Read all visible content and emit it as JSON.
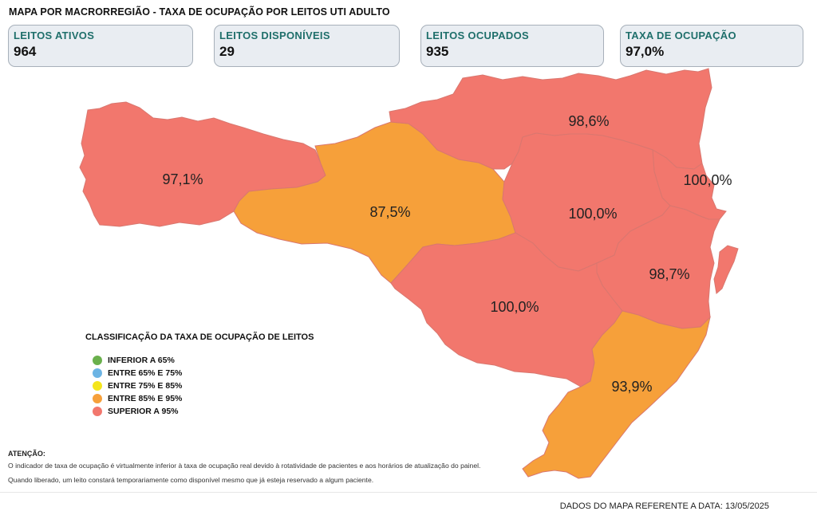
{
  "title": "MAPA POR MACRORREGIÃO - TAXA DE OCUPAÇÃO POR LEITOS UTI ADULTO",
  "kpis": [
    {
      "label": "LEITOS ATIVOS",
      "value": "964"
    },
    {
      "label": "LEITOS DISPONÍVEIS",
      "value": "29"
    },
    {
      "label": "LEITOS OCUPADOS",
      "value": "935"
    },
    {
      "label": "TAXA DE OCUPAÇÃO",
      "value": "97,0%"
    }
  ],
  "colors": {
    "red": "#f2776d",
    "orange": "#f6a03a",
    "green": "#6ab04c",
    "blue": "#6cb4e4",
    "yellow": "#f4e51c"
  },
  "regions": [
    {
      "label": "97,1%",
      "color": "red"
    },
    {
      "label": "87,5%",
      "color": "orange"
    },
    {
      "label": "98,6%",
      "color": "red"
    },
    {
      "label": "100,0%",
      "color": "red"
    },
    {
      "label": "100,0%",
      "color": "red"
    },
    {
      "label": "98,7%",
      "color": "red"
    },
    {
      "label": "100,0%",
      "color": "red"
    },
    {
      "label": "93,9%",
      "color": "orange"
    }
  ],
  "legend": {
    "title": "CLASSIFICAÇÃO DA TAXA DE OCUPAÇÃO DE LEITOS",
    "items": [
      {
        "label": "INFERIOR A 65%",
        "color": "green"
      },
      {
        "label": "ENTRE 65% E 75%",
        "color": "blue"
      },
      {
        "label": "ENTRE 75% E 85%",
        "color": "yellow"
      },
      {
        "label": "ENTRE 85% E 95%",
        "color": "orange"
      },
      {
        "label": "SUPERIOR A 95%",
        "color": "red"
      }
    ]
  },
  "attention": {
    "title": "ATENÇÃO:",
    "line1": "O indicador de taxa de ocupação é virtualmente inferior à taxa de ocupação real devido à rotatividade de pacientes e aos horários de atualização do painel.",
    "line2": "Quando liberado, um leito constará temporariamente como disponível mesmo que já esteja reservado a algum paciente."
  },
  "footer": "DADOS DO MAPA REFERENTE A DATA: 13/05/2025"
}
